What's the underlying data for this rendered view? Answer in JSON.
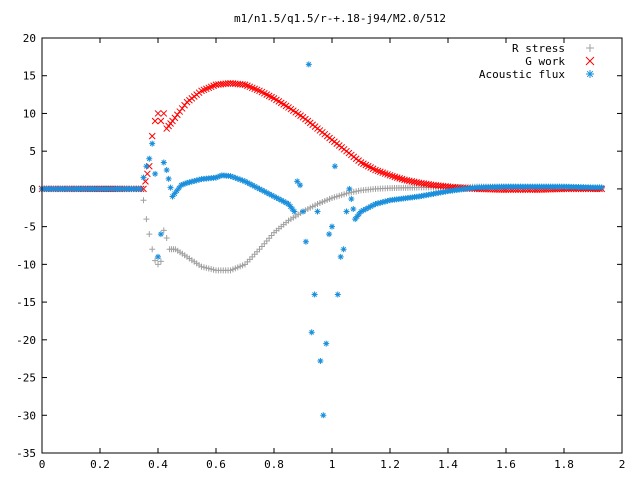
{
  "chart_data": {
    "type": "scatter",
    "title": "m1/n1.5/q1.5/r-+.18-j94/M2.0/512",
    "xlabel": "",
    "ylabel": "",
    "xlim": [
      0,
      2
    ],
    "ylim": [
      -35,
      20
    ],
    "x_ticks": [
      0,
      0.2,
      0.4,
      0.6,
      0.8,
      1,
      1.2,
      1.4,
      1.6,
      1.8,
      2
    ],
    "x_tick_labels": [
      "0",
      "0.2",
      "0.4",
      "0.6",
      "0.8",
      "1",
      "1.2",
      "1.4",
      "1.6",
      "1.8",
      "2"
    ],
    "y_ticks": [
      -35,
      -30,
      -25,
      -20,
      -15,
      -10,
      -5,
      0,
      5,
      10,
      15,
      20
    ],
    "y_tick_labels": [
      "-35",
      "-30",
      "-25",
      "-20",
      "-15",
      "-10",
      "-5",
      "0",
      "5",
      "10",
      "15",
      "20"
    ],
    "grid": false,
    "legend_position": "top-right",
    "series": [
      {
        "name": "R stress",
        "marker": "plus",
        "color": "#a0a0a0",
        "points": [
          [
            0,
            0
          ],
          [
            0.2,
            0
          ],
          [
            0.3,
            0
          ],
          [
            0.34,
            0
          ],
          [
            0.35,
            -1.5
          ],
          [
            0.36,
            -4
          ],
          [
            0.37,
            -6
          ],
          [
            0.38,
            -8
          ],
          [
            0.39,
            -9.5
          ],
          [
            0.4,
            -10
          ],
          [
            0.41,
            -9.6
          ],
          [
            0.42,
            -5.5
          ],
          [
            0.43,
            -6.5
          ],
          [
            0.44,
            -8
          ],
          [
            0.46,
            -8
          ],
          [
            0.5,
            -9
          ],
          [
            0.55,
            -10.3
          ],
          [
            0.6,
            -10.8
          ],
          [
            0.65,
            -10.8
          ],
          [
            0.7,
            -10
          ],
          [
            0.75,
            -8
          ],
          [
            0.8,
            -5.8
          ],
          [
            0.85,
            -4.2
          ],
          [
            0.9,
            -3
          ],
          [
            0.95,
            -2
          ],
          [
            1,
            -1.2
          ],
          [
            1.05,
            -0.6
          ],
          [
            1.1,
            -0.2
          ],
          [
            1.15,
            0
          ],
          [
            1.2,
            0.1
          ],
          [
            1.3,
            0.2
          ],
          [
            1.4,
            0.2
          ],
          [
            1.5,
            0.3
          ],
          [
            1.6,
            0.3
          ],
          [
            1.7,
            0.2
          ],
          [
            1.8,
            0.2
          ],
          [
            1.9,
            0.1
          ],
          [
            1.93,
            0.1
          ]
        ]
      },
      {
        "name": "G work",
        "marker": "cross",
        "color": "#ff0000",
        "points": [
          [
            0,
            0
          ],
          [
            0.3,
            0
          ],
          [
            0.35,
            0
          ],
          [
            0.37,
            3
          ],
          [
            0.38,
            7
          ],
          [
            0.39,
            9
          ],
          [
            0.4,
            10
          ],
          [
            0.41,
            9
          ],
          [
            0.42,
            10
          ],
          [
            0.43,
            8
          ],
          [
            0.45,
            9
          ],
          [
            0.5,
            11.5
          ],
          [
            0.55,
            13
          ],
          [
            0.6,
            13.8
          ],
          [
            0.65,
            14
          ],
          [
            0.7,
            13.8
          ],
          [
            0.75,
            13
          ],
          [
            0.8,
            12
          ],
          [
            0.85,
            10.8
          ],
          [
            0.9,
            9.5
          ],
          [
            0.95,
            8
          ],
          [
            1,
            6.5
          ],
          [
            1.05,
            5
          ],
          [
            1.1,
            3.5
          ],
          [
            1.15,
            2.5
          ],
          [
            1.2,
            1.8
          ],
          [
            1.25,
            1.2
          ],
          [
            1.3,
            0.8
          ],
          [
            1.35,
            0.5
          ],
          [
            1.4,
            0.3
          ],
          [
            1.45,
            0.1
          ],
          [
            1.5,
            0
          ],
          [
            1.6,
            -0.1
          ],
          [
            1.7,
            -0.1
          ],
          [
            1.8,
            0
          ],
          [
            1.9,
            0
          ],
          [
            1.93,
            0
          ]
        ]
      },
      {
        "name": "Acoustic flux",
        "marker": "star",
        "color": "#1a8fdc",
        "points": [
          [
            0,
            0
          ],
          [
            0.2,
            0
          ],
          [
            0.3,
            0
          ],
          [
            0.34,
            0
          ],
          [
            0.35,
            1.5
          ],
          [
            0.36,
            3
          ],
          [
            0.37,
            4
          ],
          [
            0.38,
            6
          ],
          [
            0.39,
            2
          ],
          [
            0.4,
            -9
          ],
          [
            0.41,
            -6
          ],
          [
            0.42,
            3.5
          ],
          [
            0.43,
            2.5
          ],
          [
            0.45,
            -1
          ],
          [
            0.48,
            0.5
          ],
          [
            0.5,
            0.8
          ],
          [
            0.55,
            1.3
          ],
          [
            0.6,
            1.5
          ],
          [
            0.62,
            1.8
          ],
          [
            0.65,
            1.7
          ],
          [
            0.7,
            1
          ],
          [
            0.75,
            0
          ],
          [
            0.8,
            -1
          ],
          [
            0.85,
            -2
          ],
          [
            0.87,
            -3
          ],
          [
            0.88,
            1
          ],
          [
            0.89,
            0.5
          ],
          [
            0.9,
            -3
          ],
          [
            0.91,
            -7
          ],
          [
            0.92,
            16.5
          ],
          [
            0.93,
            -19
          ],
          [
            0.94,
            -14
          ],
          [
            0.95,
            -3
          ],
          [
            0.96,
            -22.8
          ],
          [
            0.97,
            -30
          ],
          [
            0.98,
            -20.5
          ],
          [
            0.99,
            -6
          ],
          [
            1,
            -5
          ],
          [
            1.01,
            3
          ],
          [
            1.02,
            -14
          ],
          [
            1.03,
            -9
          ],
          [
            1.04,
            -8
          ],
          [
            1.05,
            -3
          ],
          [
            1.06,
            0
          ],
          [
            1.08,
            -4
          ],
          [
            1.1,
            -3
          ],
          [
            1.15,
            -2
          ],
          [
            1.2,
            -1.5
          ],
          [
            1.3,
            -1
          ],
          [
            1.4,
            -0.3
          ],
          [
            1.5,
            0.2
          ],
          [
            1.6,
            0.3
          ],
          [
            1.7,
            0.3
          ],
          [
            1.8,
            0.3
          ],
          [
            1.9,
            0.2
          ],
          [
            1.93,
            0.2
          ]
        ]
      }
    ]
  },
  "colors": {
    "axis": "#000000",
    "background": "#ffffff"
  }
}
